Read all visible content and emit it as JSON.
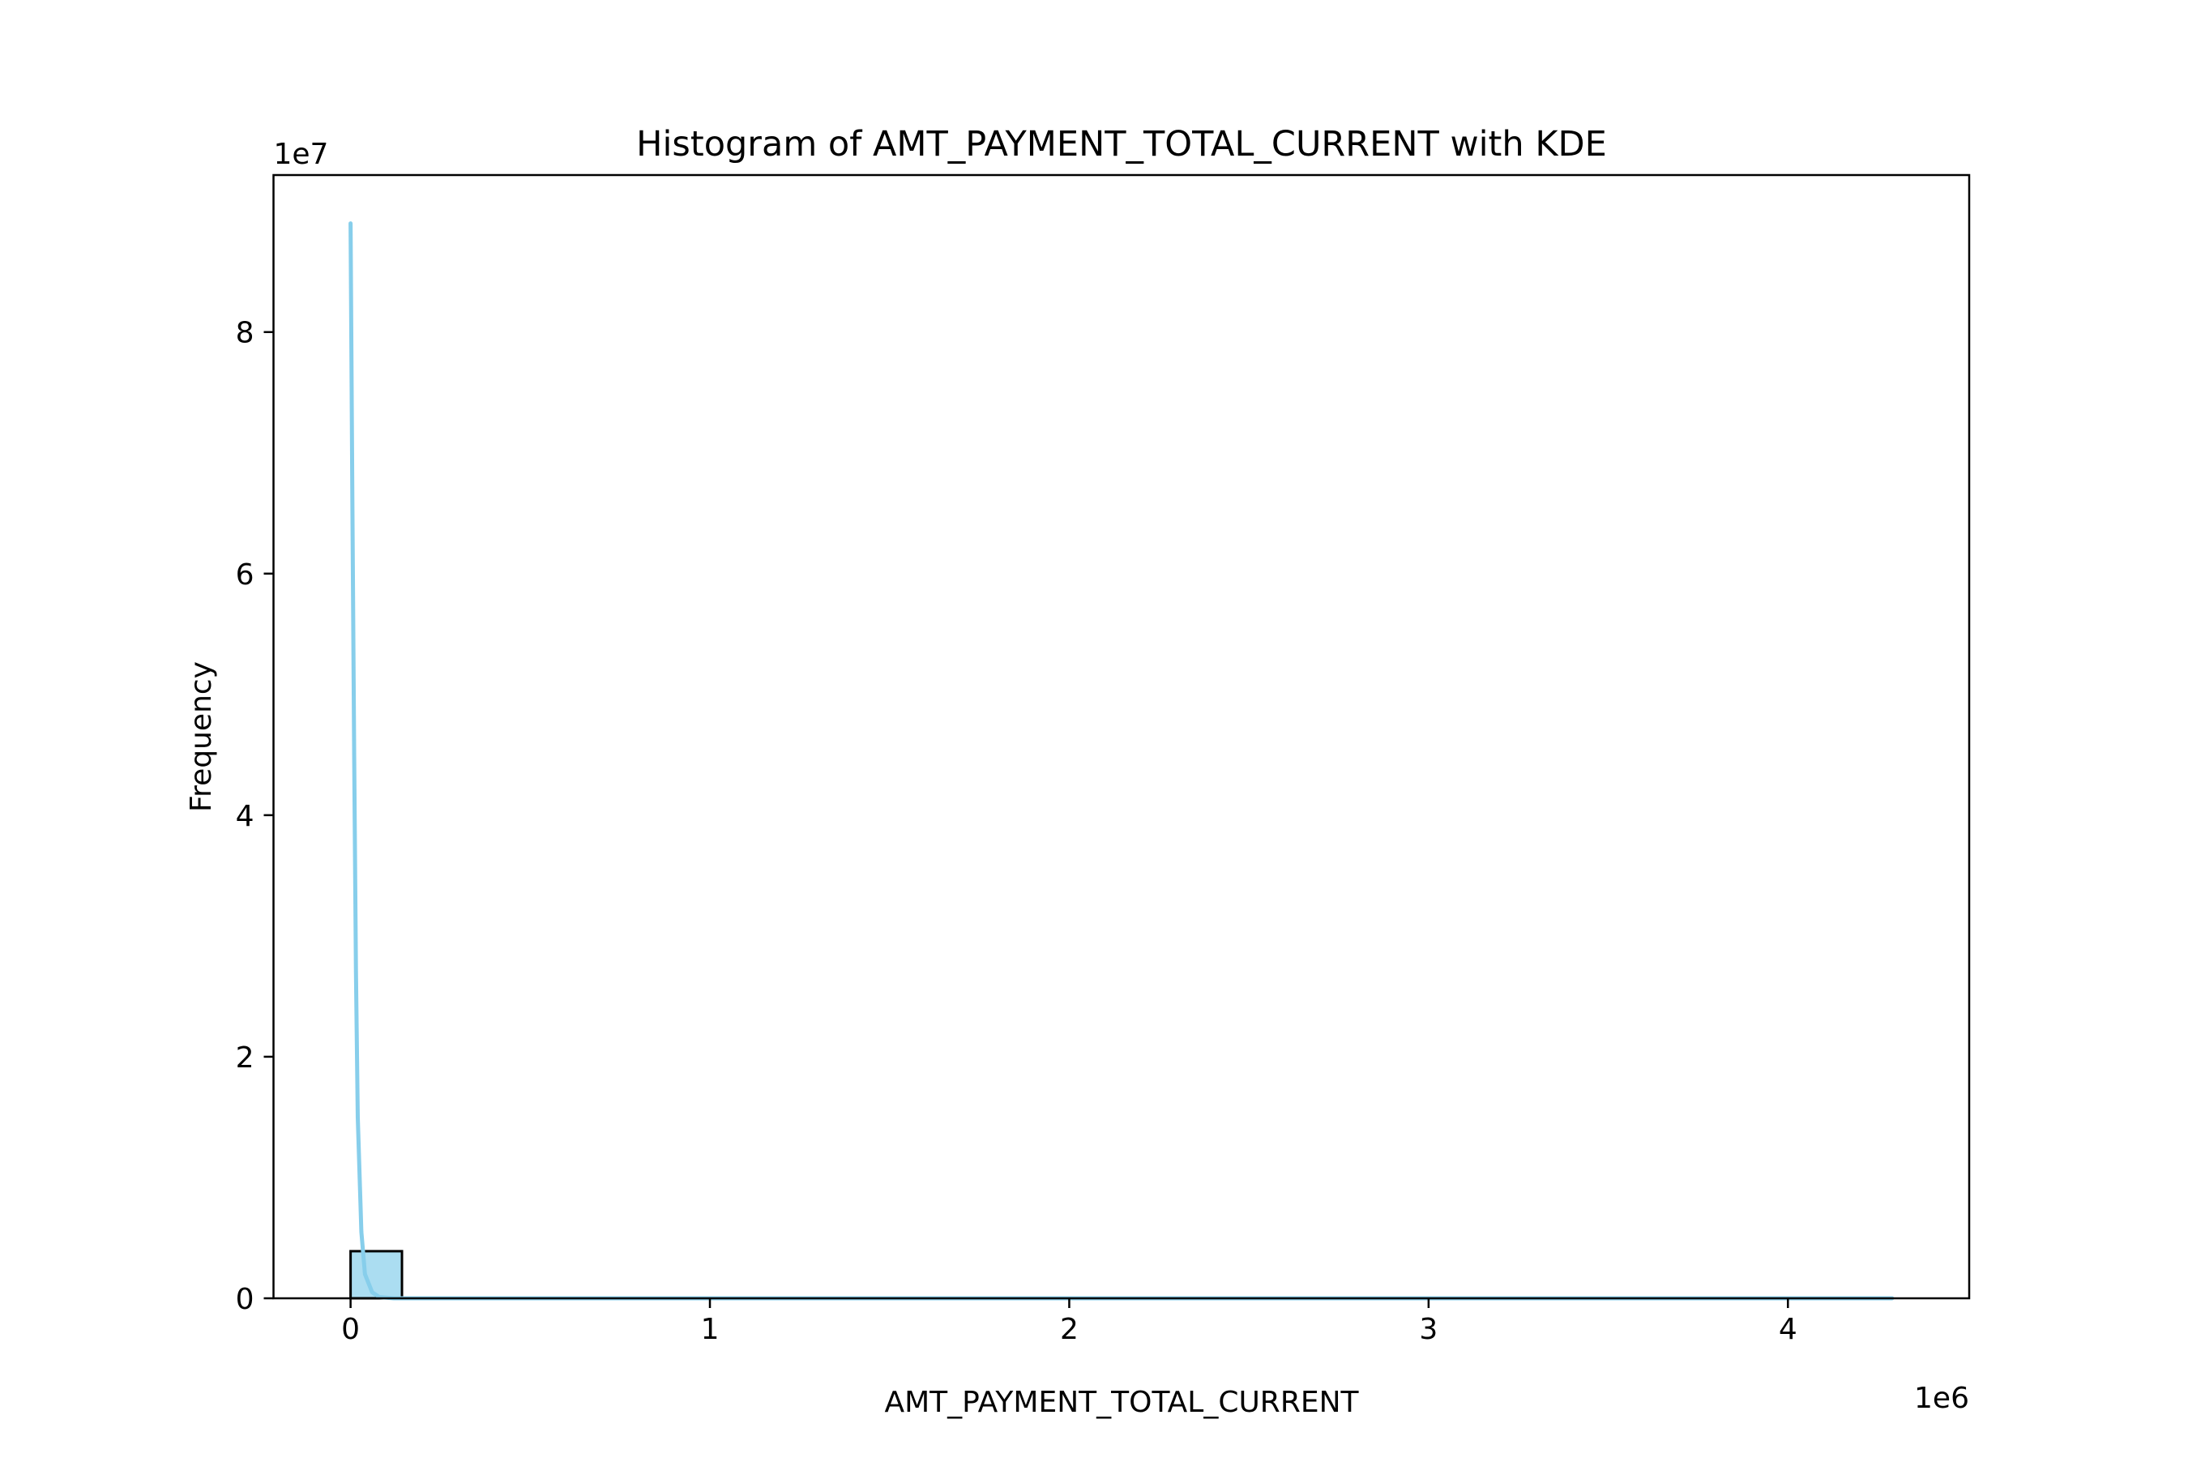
{
  "chart_data": {
    "type": "bar",
    "title": "Histogram of AMT_PAYMENT_TOTAL_CURRENT with KDE",
    "xlabel": "AMT_PAYMENT_TOTAL_CURRENT",
    "ylabel": "Frequency",
    "x_offset_label": "1e6",
    "y_offset_label": "1e7",
    "xlim": [
      -0.2145,
      4.5045
    ],
    "ylim": [
      0,
      9.3
    ],
    "x_ticks": [
      {
        "value": 0,
        "label": "0"
      },
      {
        "value": 1,
        "label": "1"
      },
      {
        "value": 2,
        "label": "2"
      },
      {
        "value": 3,
        "label": "3"
      },
      {
        "value": 4,
        "label": "4"
      }
    ],
    "y_ticks": [
      {
        "value": 0,
        "label": "0"
      },
      {
        "value": 2,
        "label": "2"
      },
      {
        "value": 4,
        "label": "4"
      },
      {
        "value": 6,
        "label": "6"
      },
      {
        "value": 8,
        "label": "8"
      }
    ],
    "bins": [
      {
        "x0": 0.0,
        "x1": 0.143,
        "count": 0.39
      },
      {
        "x0": 0.143,
        "x1": 0.286,
        "count": 0.0
      },
      {
        "x0": 0.286,
        "x1": 0.429,
        "count": 0.0
      },
      {
        "x0": 0.429,
        "x1": 4.29,
        "count": 0.0
      }
    ],
    "kde": {
      "x": [
        0.0,
        0.005,
        0.01,
        0.015,
        0.02,
        0.03,
        0.04,
        0.06,
        0.08,
        0.12,
        0.2,
        0.5,
        1.0,
        2.0,
        3.0,
        4.29
      ],
      "y": [
        8.9,
        6.6,
        4.5,
        2.7,
        1.5,
        0.55,
        0.2,
        0.05,
        0.01,
        0.0,
        0.0,
        0.0,
        0.0,
        0.0,
        0.0,
        0.0
      ]
    },
    "colors": {
      "bar_fill": "#87ceeb",
      "bar_fill_opacity": 0.7,
      "bar_edge": "#000000",
      "kde_line": "#87ceeb"
    },
    "grid": false,
    "legend": "none"
  }
}
